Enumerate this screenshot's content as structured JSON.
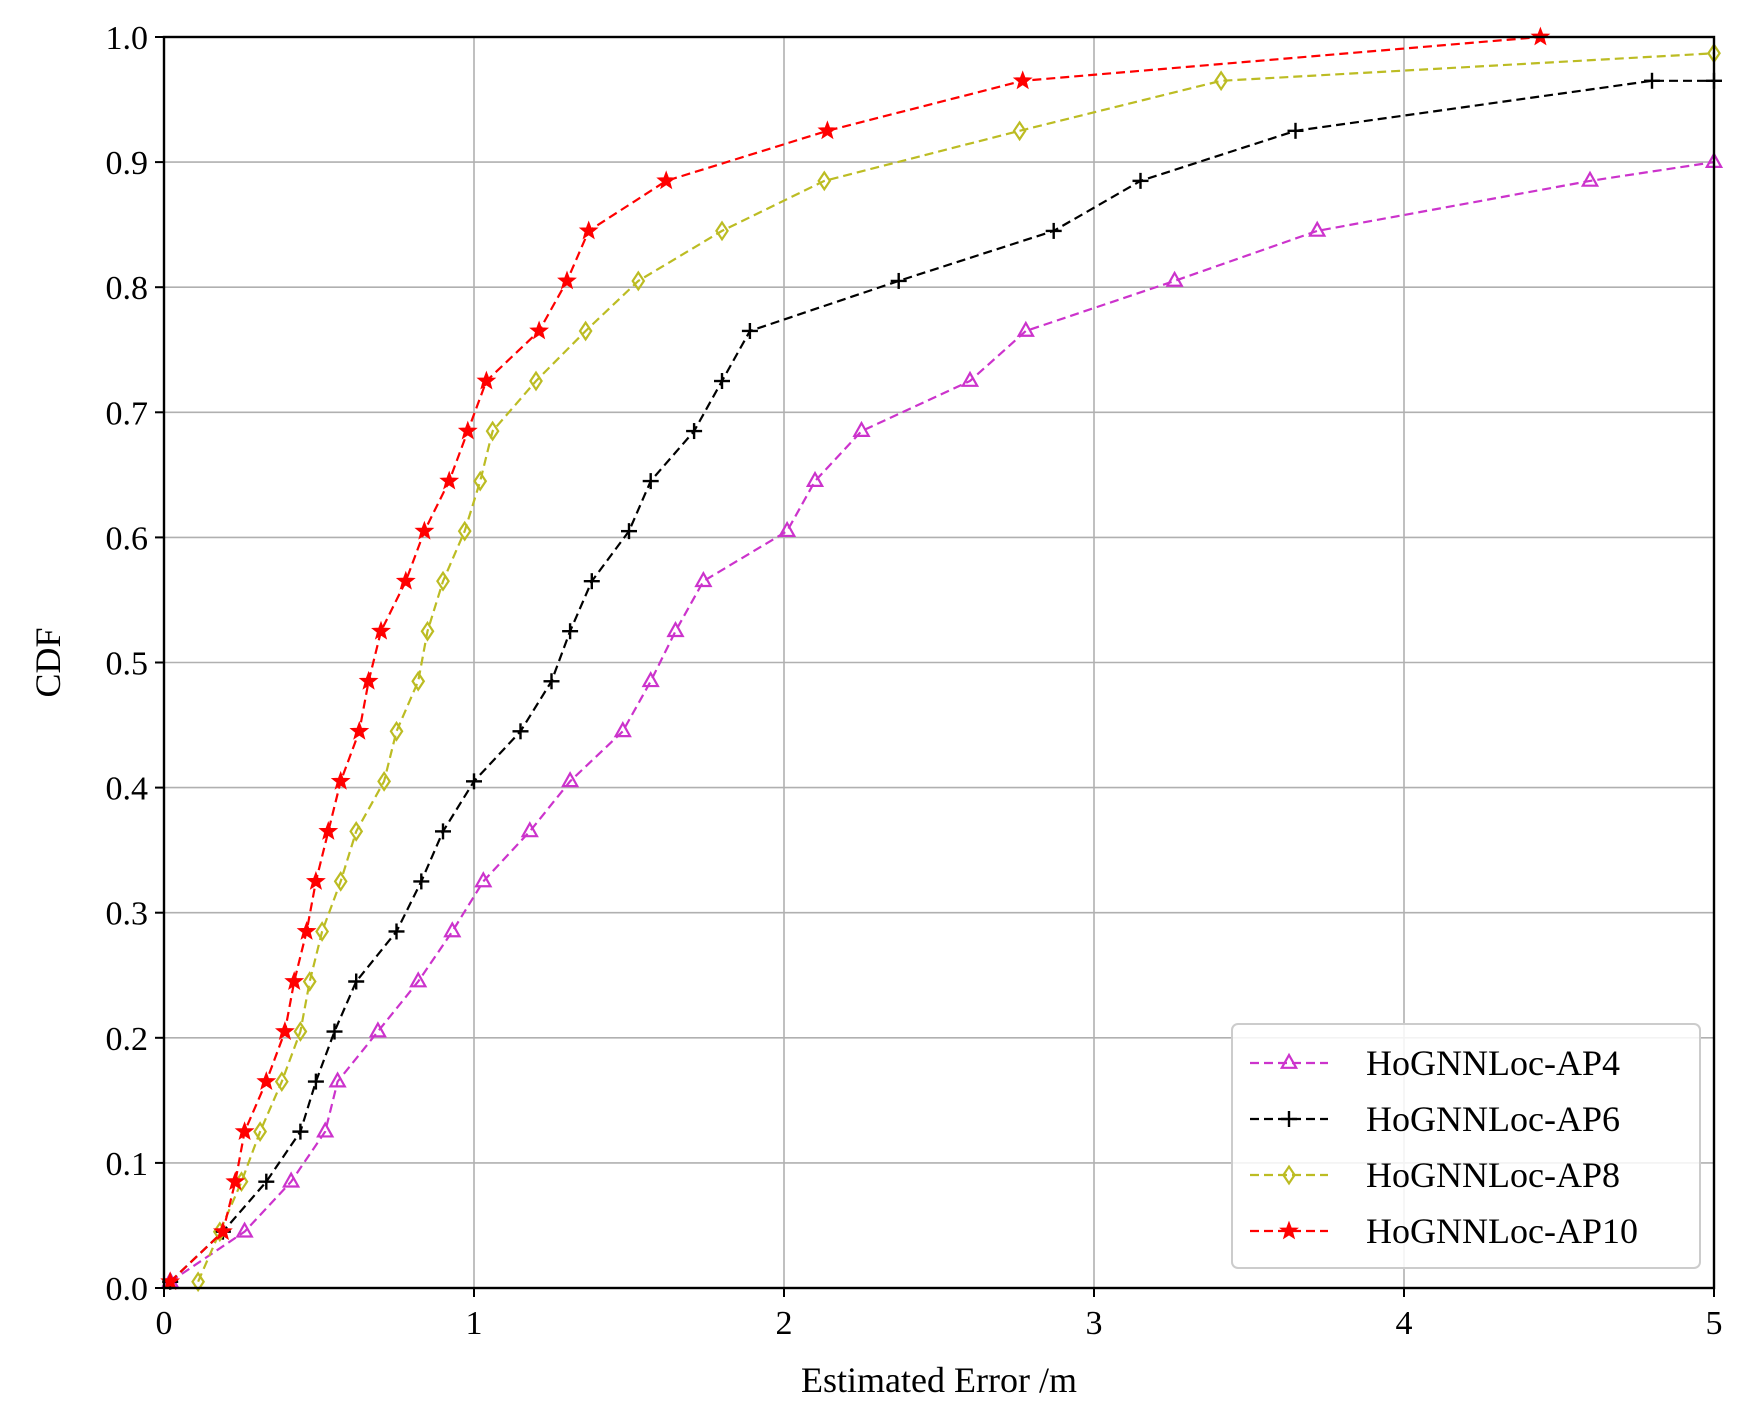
{
  "chart_data": {
    "type": "line",
    "title": "",
    "xlabel": "Estimated Error /m",
    "ylabel": "CDF",
    "xlim": [
      0,
      5
    ],
    "ylim": [
      0,
      1
    ],
    "xticks": [
      "0",
      "1",
      "2",
      "3",
      "4",
      "5"
    ],
    "yticks": [
      "0.0",
      "0.1",
      "0.2",
      "0.3",
      "0.4",
      "0.5",
      "0.6",
      "0.7",
      "0.8",
      "0.9",
      "1.0"
    ],
    "grid": true,
    "legend_position": "bottom-right",
    "series": [
      {
        "name": "HoGNNLoc-AP4",
        "color": "#cc33cc",
        "marker": "triangle",
        "x": [
          0.02,
          0.26,
          0.41,
          0.52,
          0.56,
          0.69,
          0.82,
          0.93,
          1.03,
          1.18,
          1.31,
          1.48,
          1.57,
          1.65,
          1.74,
          2.01,
          2.1,
          2.25,
          2.6,
          2.78,
          3.26,
          3.72,
          4.6,
          5.0
        ],
        "y": [
          0.005,
          0.045,
          0.085,
          0.125,
          0.165,
          0.205,
          0.245,
          0.285,
          0.325,
          0.365,
          0.405,
          0.445,
          0.485,
          0.525,
          0.565,
          0.605,
          0.645,
          0.685,
          0.725,
          0.765,
          0.805,
          0.845,
          0.885,
          0.9
        ]
      },
      {
        "name": "HoGNNLoc-AP6",
        "color": "#000000",
        "marker": "plus",
        "x": [
          0.02,
          0.19,
          0.33,
          0.44,
          0.49,
          0.55,
          0.62,
          0.75,
          0.83,
          0.9,
          1.0,
          1.15,
          1.25,
          1.31,
          1.38,
          1.5,
          1.57,
          1.71,
          1.8,
          1.89,
          2.37,
          2.87,
          3.15,
          3.65,
          4.8,
          5.0
        ],
        "y": [
          0.005,
          0.045,
          0.085,
          0.125,
          0.165,
          0.205,
          0.245,
          0.285,
          0.325,
          0.365,
          0.405,
          0.445,
          0.485,
          0.525,
          0.565,
          0.605,
          0.645,
          0.685,
          0.725,
          0.765,
          0.805,
          0.845,
          0.885,
          0.925,
          0.965,
          0.965
        ]
      },
      {
        "name": "HoGNNLoc-AP8",
        "color": "#bcbc23",
        "marker": "diamond",
        "x": [
          0.11,
          0.18,
          0.25,
          0.31,
          0.38,
          0.44,
          0.47,
          0.51,
          0.57,
          0.62,
          0.71,
          0.75,
          0.82,
          0.85,
          0.9,
          0.97,
          1.02,
          1.06,
          1.2,
          1.36,
          1.53,
          1.8,
          2.13,
          2.76,
          3.41,
          5.0
        ],
        "y": [
          0.005,
          0.045,
          0.085,
          0.125,
          0.165,
          0.205,
          0.245,
          0.285,
          0.325,
          0.365,
          0.405,
          0.445,
          0.485,
          0.525,
          0.565,
          0.605,
          0.645,
          0.685,
          0.725,
          0.765,
          0.805,
          0.845,
          0.885,
          0.925,
          0.965,
          0.987
        ]
      },
      {
        "name": "HoGNNLoc-AP10",
        "color": "#ff0000",
        "marker": "star",
        "x": [
          0.02,
          0.19,
          0.23,
          0.26,
          0.33,
          0.39,
          0.42,
          0.46,
          0.49,
          0.53,
          0.57,
          0.63,
          0.66,
          0.7,
          0.78,
          0.84,
          0.92,
          0.98,
          1.04,
          1.21,
          1.3,
          1.37,
          1.62,
          2.14,
          2.77,
          4.44
        ],
        "y": [
          0.005,
          0.045,
          0.085,
          0.125,
          0.165,
          0.205,
          0.245,
          0.285,
          0.325,
          0.365,
          0.405,
          0.445,
          0.485,
          0.525,
          0.565,
          0.605,
          0.645,
          0.685,
          0.725,
          0.765,
          0.805,
          0.845,
          0.885,
          0.925,
          0.965,
          1.0
        ]
      }
    ]
  }
}
